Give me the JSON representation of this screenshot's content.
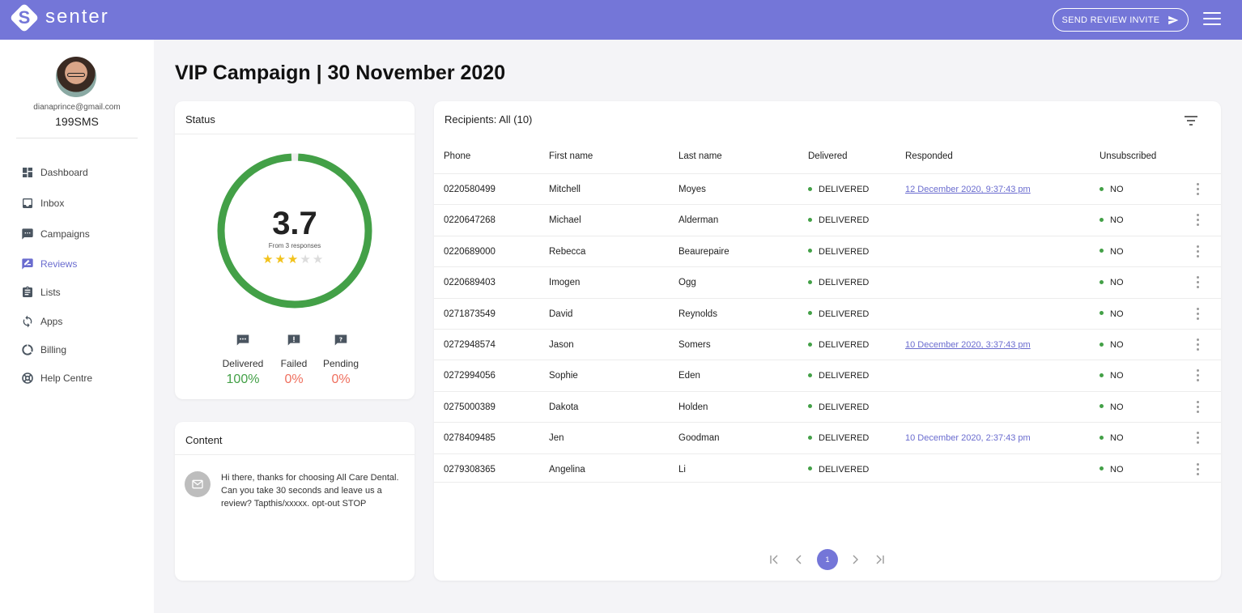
{
  "brand": {
    "logo_letter": "S",
    "name": "senter"
  },
  "header": {
    "send_invite_label": "SEND REVIEW INVITE"
  },
  "user": {
    "email": "dianaprince@gmail.com",
    "plan": "199SMS"
  },
  "nav": [
    {
      "label": "Dashboard",
      "icon": "dashboard-icon",
      "active": false
    },
    {
      "label": "Inbox",
      "icon": "inbox-icon",
      "active": false
    },
    {
      "label": "Campaigns",
      "icon": "campaigns-icon",
      "active": false
    },
    {
      "label": "Reviews",
      "icon": "reviews-icon",
      "active": true
    },
    {
      "label": "Lists",
      "icon": "lists-icon",
      "active": false
    },
    {
      "label": "Apps",
      "icon": "apps-icon",
      "active": false
    },
    {
      "label": "Billing",
      "icon": "billing-icon",
      "active": false
    },
    {
      "label": "Help Centre",
      "icon": "help-icon",
      "active": false
    }
  ],
  "page": {
    "title": "VIP Campaign | 30 November 2020"
  },
  "status": {
    "title": "Status",
    "score": "3.7",
    "score_sub": "From 3 responses",
    "rating": 3.7,
    "rating_max": 5,
    "ring_fill": 0.985,
    "stats": [
      {
        "label": "Delivered",
        "value": "100%",
        "icon": "message-icon"
      },
      {
        "label": "Failed",
        "value": "0%",
        "icon": "alert-message-icon"
      },
      {
        "label": "Pending",
        "value": "0%",
        "icon": "question-message-icon"
      }
    ]
  },
  "content": {
    "title": "Content",
    "message": "Hi there, thanks for choosing All Care Dental. Can you take 30 seconds and leave us a review? Tapthis/xxxxx. opt-out STOP"
  },
  "recipients": {
    "title": "Recipients: All (10)",
    "columns": [
      "Phone",
      "First name",
      "Last name",
      "Delivered",
      "Responded",
      "Unsubscribed"
    ],
    "rows": [
      {
        "phone": "0220580499",
        "first": "Mitchell",
        "last": "Moyes",
        "delivered": "DELIVERED",
        "responded": "12 December 2020, 9:37:43 pm",
        "underline": true,
        "unsub": "NO"
      },
      {
        "phone": "0220647268",
        "first": "Michael",
        "last": "Alderman",
        "delivered": "DELIVERED",
        "responded": "",
        "underline": false,
        "unsub": "NO"
      },
      {
        "phone": "0220689000",
        "first": "Rebecca",
        "last": "Beaurepaire",
        "delivered": "DELIVERED",
        "responded": "",
        "underline": false,
        "unsub": "NO"
      },
      {
        "phone": "0220689403",
        "first": "Imogen",
        "last": "Ogg",
        "delivered": "DELIVERED",
        "responded": "",
        "underline": false,
        "unsub": "NO"
      },
      {
        "phone": "0271873549",
        "first": "David",
        "last": "Reynolds",
        "delivered": "DELIVERED",
        "responded": "",
        "underline": false,
        "unsub": "NO"
      },
      {
        "phone": "0272948574",
        "first": "Jason",
        "last": "Somers",
        "delivered": "DELIVERED",
        "responded": "10 December 2020, 3:37:43 pm",
        "underline": true,
        "unsub": "NO"
      },
      {
        "phone": "0272994056",
        "first": "Sophie",
        "last": "Eden",
        "delivered": "DELIVERED",
        "responded": "",
        "underline": false,
        "unsub": "NO"
      },
      {
        "phone": "0275000389",
        "first": "Dakota",
        "last": "Holden",
        "delivered": "DELIVERED",
        "responded": "",
        "underline": false,
        "unsub": "NO"
      },
      {
        "phone": "0278409485",
        "first": "Jen",
        "last": "Goodman",
        "delivered": "DELIVERED",
        "responded": "10 December 2020, 2:37:43 pm",
        "underline": false,
        "unsub": "NO"
      },
      {
        "phone": "0279308365",
        "first": "Angelina",
        "last": "Li",
        "delivered": "DELIVERED",
        "responded": "",
        "underline": false,
        "unsub": "NO"
      }
    ],
    "pagination": {
      "current": "1"
    }
  },
  "colors": {
    "accent": "#7476d8",
    "green": "#43a047",
    "red": "#ef6f5e",
    "star": "#f2c21b"
  }
}
